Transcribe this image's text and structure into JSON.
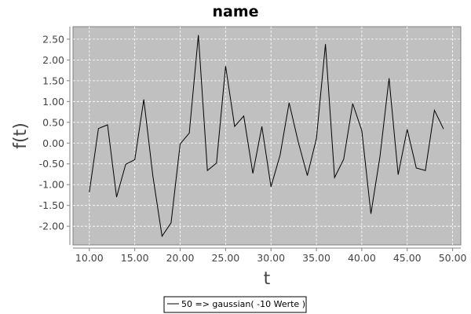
{
  "chart_data": {
    "type": "line",
    "title": "name",
    "xlabel": "t",
    "ylabel": "f(t)",
    "xlim": [
      8.2,
      50.9
    ],
    "ylim": [
      -2.45,
      2.8
    ],
    "x_ticks": [
      10,
      15,
      20,
      25,
      30,
      35,
      40,
      45,
      50
    ],
    "x_tick_labels": [
      "10.00",
      "15.00",
      "20.00",
      "25.00",
      "30.00",
      "35.00",
      "40.00",
      "45.00",
      "50.00"
    ],
    "y_ticks": [
      2.5,
      2.0,
      1.5,
      1.0,
      0.5,
      0.0,
      -0.5,
      -1.0,
      -1.5,
      -2.0
    ],
    "y_tick_labels": [
      "2.50",
      "2.00",
      "1.50",
      "1.00",
      "0.50",
      "0.00",
      "-0.50",
      "-1.00",
      "-1.50",
      "-2.00"
    ],
    "grid": true,
    "legend_position": "bottom-center",
    "plot_background": "#c0c0c0",
    "line_color": "#000000",
    "series": [
      {
        "name": "50 => gaussian( -10 Werte )",
        "x": [
          10,
          11,
          12,
          13,
          14,
          15,
          16,
          17,
          18,
          19,
          20,
          21,
          22,
          23,
          24,
          25,
          26,
          27,
          28,
          29,
          30,
          31,
          32,
          33,
          34,
          35,
          36,
          37,
          38,
          39,
          40,
          41,
          42,
          43,
          44,
          45,
          46,
          47,
          48,
          49
        ],
        "y": [
          -1.18,
          0.35,
          0.44,
          -1.3,
          -0.51,
          -0.4,
          1.05,
          -0.8,
          -2.24,
          -1.92,
          -0.02,
          0.24,
          2.6,
          -0.66,
          -0.48,
          1.85,
          0.4,
          0.65,
          -0.73,
          0.4,
          -1.05,
          -0.29,
          0.97,
          0.03,
          -0.78,
          0.11,
          2.38,
          -0.83,
          -0.39,
          0.95,
          0.3,
          -1.7,
          -0.33,
          1.56,
          -0.76,
          0.33,
          -0.6,
          -0.66,
          0.79,
          0.34
        ]
      }
    ]
  }
}
